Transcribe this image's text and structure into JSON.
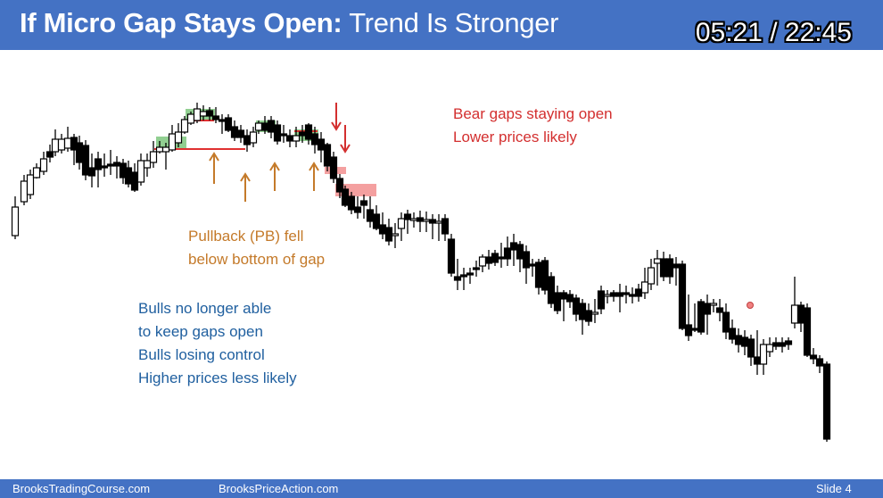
{
  "slide": {
    "title_bold": "If Micro Gap Stays Open:",
    "title_rest": " Trend Is Stronger",
    "timer": "05:21 / 22:45"
  },
  "annotations": {
    "bear": [
      "Bear gaps staying open",
      "Lower prices likely"
    ],
    "pullback": [
      "Pullback (PB) fell",
      "below bottom of gap"
    ],
    "bulls": [
      "Bulls no longer able",
      "to keep gaps open",
      "Bulls losing control",
      "Higher prices less likely"
    ]
  },
  "footer": {
    "left": "BrooksTradingCourse.com",
    "center": "BrooksPriceAction.com",
    "right": "Slide  4"
  },
  "colors": {
    "header": "#4472c4",
    "bull_gap": "#6cbf6c",
    "bear_gap": "#f08080",
    "bear_text": "#d32f2f",
    "pullback_text": "#c47a2a",
    "bulls_text": "#1f5f9f",
    "arrow_orange": "#c47a2a",
    "arrow_red": "#d32f2f",
    "support_line": "#e03030"
  },
  "icons": {
    "cursor": "laser-pointer-dot"
  }
}
